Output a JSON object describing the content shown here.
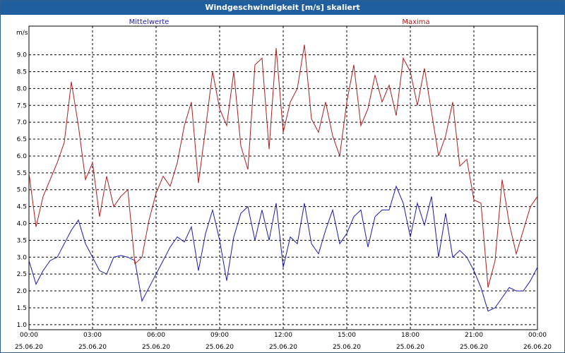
{
  "window": {
    "title": "Windgeschwindigkeit [m/s] skaliert"
  },
  "chart_data": {
    "type": "line",
    "title": "Windgeschwindigkeit [m/s] skaliert",
    "ylabel": "m/s",
    "ylim": [
      0.85,
      9.85
    ],
    "y_ticks": [
      "1.0",
      "1.5",
      "2.0",
      "2.5",
      "3.0",
      "3.5",
      "4.0",
      "4.5",
      "5.0",
      "5.5",
      "6.0",
      "6.5",
      "7.0",
      "7.5",
      "8.0",
      "8.5",
      "9.0"
    ],
    "x_ticks": [
      {
        "time": "00:00",
        "date": "25.06.20"
      },
      {
        "time": "03:00",
        "date": "25.06.20"
      },
      {
        "time": "06:00",
        "date": "25.06.20"
      },
      {
        "time": "09:00",
        "date": "25.06.20"
      },
      {
        "time": "12:00",
        "date": "25.06.20"
      },
      {
        "time": "15:00",
        "date": "25.06.20"
      },
      {
        "time": "18:00",
        "date": "25.06.20"
      },
      {
        "time": "21:00",
        "date": "25.06.20"
      },
      {
        "time": "00:00",
        "date": "26.06.20"
      }
    ],
    "grid": true,
    "colors": {
      "mean": "#1a1ab4",
      "max": "#b41a1a",
      "grid": "#000000"
    },
    "series": [
      {
        "name": "Mittelwerte",
        "x": [
          "00:00",
          "00:20",
          "00:40",
          "01:00",
          "01:20",
          "01:40",
          "02:00",
          "02:20",
          "02:40",
          "03:00",
          "03:20",
          "03:40",
          "04:00",
          "04:20",
          "04:40",
          "05:00",
          "05:20",
          "05:40",
          "06:00",
          "06:20",
          "06:40",
          "07:00",
          "07:20",
          "07:40",
          "08:00",
          "08:20",
          "08:40",
          "09:00",
          "09:20",
          "09:40",
          "10:00",
          "10:20",
          "10:40",
          "11:00",
          "11:20",
          "11:40",
          "12:00",
          "12:20",
          "12:40",
          "13:00",
          "13:20",
          "13:40",
          "14:00",
          "14:20",
          "14:40",
          "15:00",
          "15:20",
          "15:40",
          "16:00",
          "16:20",
          "16:40",
          "17:00",
          "17:20",
          "17:40",
          "18:00",
          "18:20",
          "18:40",
          "19:00",
          "19:20",
          "19:40",
          "20:00",
          "20:20",
          "20:40",
          "21:00",
          "21:20",
          "21:40",
          "22:00",
          "22:20",
          "22:40",
          "23:00",
          "23:20",
          "23:40",
          "24:00"
        ],
        "values": [
          2.9,
          2.2,
          2.6,
          2.9,
          3.0,
          3.4,
          3.8,
          4.1,
          3.4,
          3.0,
          2.6,
          2.5,
          3.0,
          3.05,
          3.0,
          2.9,
          1.7,
          2.1,
          2.5,
          2.9,
          3.3,
          3.6,
          3.45,
          3.9,
          2.6,
          3.7,
          4.4,
          3.5,
          2.3,
          3.6,
          4.3,
          4.5,
          3.5,
          4.4,
          3.5,
          4.6,
          2.7,
          3.6,
          3.4,
          4.6,
          3.4,
          3.1,
          3.8,
          4.4,
          3.4,
          3.7,
          4.2,
          4.4,
          3.3,
          4.2,
          4.4,
          4.4,
          5.1,
          4.6,
          3.6,
          4.6,
          3.95,
          4.8,
          3.0,
          4.3,
          3.0,
          3.2,
          3.0,
          2.6,
          2.1,
          1.4,
          1.5,
          1.8,
          2.1,
          2.0,
          2.0,
          2.3,
          2.7
        ]
      },
      {
        "name": "Maxima",
        "x": [
          "00:00",
          "00:20",
          "00:40",
          "01:00",
          "01:20",
          "01:40",
          "02:00",
          "02:20",
          "02:40",
          "03:00",
          "03:20",
          "03:40",
          "04:00",
          "04:20",
          "04:40",
          "05:00",
          "05:20",
          "05:40",
          "06:00",
          "06:20",
          "06:40",
          "07:00",
          "07:20",
          "07:40",
          "08:00",
          "08:20",
          "08:40",
          "09:00",
          "09:20",
          "09:40",
          "10:00",
          "10:20",
          "10:40",
          "11:00",
          "11:20",
          "11:40",
          "12:00",
          "12:20",
          "12:40",
          "13:00",
          "13:20",
          "13:40",
          "14:00",
          "14:20",
          "14:40",
          "15:00",
          "15:20",
          "15:40",
          "16:00",
          "16:20",
          "16:40",
          "17:00",
          "17:20",
          "17:40",
          "18:00",
          "18:20",
          "18:40",
          "19:00",
          "19:20",
          "19:40",
          "20:00",
          "20:20",
          "20:40",
          "21:00",
          "21:20",
          "21:40",
          "22:00",
          "22:20",
          "22:40",
          "23:00",
          "23:20",
          "23:40",
          "24:00"
        ],
        "values": [
          5.5,
          3.9,
          4.8,
          5.3,
          5.8,
          6.4,
          8.2,
          6.9,
          5.3,
          5.8,
          4.2,
          5.4,
          4.5,
          4.8,
          5.0,
          2.8,
          3.0,
          4.1,
          4.9,
          5.4,
          5.1,
          5.8,
          6.9,
          7.6,
          5.2,
          6.8,
          8.5,
          7.4,
          6.9,
          8.5,
          6.3,
          5.6,
          8.7,
          8.9,
          6.2,
          9.2,
          6.7,
          7.6,
          8.0,
          9.3,
          7.1,
          6.7,
          7.6,
          6.6,
          6.0,
          7.6,
          8.7,
          6.9,
          7.4,
          8.4,
          7.6,
          8.1,
          7.2,
          8.9,
          8.5,
          7.5,
          8.6,
          7.3,
          6.0,
          6.6,
          7.6,
          5.7,
          5.9,
          4.7,
          4.6,
          2.1,
          2.9,
          5.3,
          4.0,
          3.1,
          3.8,
          4.5,
          4.8
        ]
      }
    ]
  }
}
